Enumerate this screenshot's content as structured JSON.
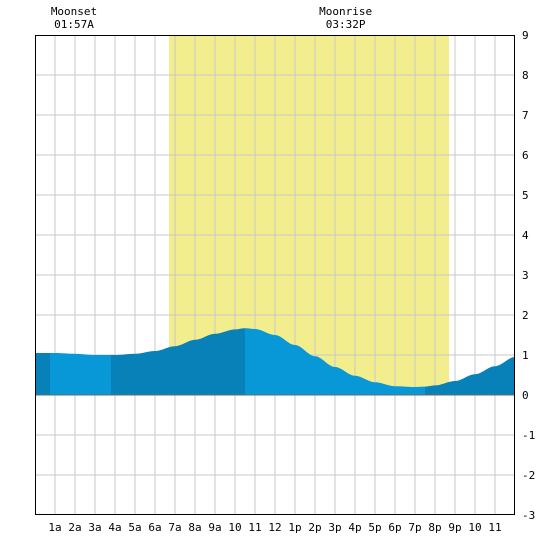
{
  "chart_data": {
    "type": "area",
    "title": "",
    "xlabel": "",
    "ylabel": "",
    "x_range_hours": [
      0,
      24
    ],
    "ylim": [
      -3,
      9
    ],
    "y_ticks": [
      "-3",
      "-2",
      "-1",
      "0",
      "1",
      "2",
      "3",
      "4",
      "5",
      "6",
      "7",
      "8",
      "9"
    ],
    "x_ticks": [
      {
        "hour": 1,
        "label": "1a"
      },
      {
        "hour": 2,
        "label": "2a"
      },
      {
        "hour": 3,
        "label": "3a"
      },
      {
        "hour": 4,
        "label": "4a"
      },
      {
        "hour": 5,
        "label": "5a"
      },
      {
        "hour": 6,
        "label": "6a"
      },
      {
        "hour": 7,
        "label": "7a"
      },
      {
        "hour": 8,
        "label": "8a"
      },
      {
        "hour": 9,
        "label": "9a"
      },
      {
        "hour": 10,
        "label": "10"
      },
      {
        "hour": 11,
        "label": "11"
      },
      {
        "hour": 12,
        "label": "12"
      },
      {
        "hour": 13,
        "label": "1p"
      },
      {
        "hour": 14,
        "label": "2p"
      },
      {
        "hour": 15,
        "label": "3p"
      },
      {
        "hour": 16,
        "label": "4p"
      },
      {
        "hour": 17,
        "label": "5p"
      },
      {
        "hour": 18,
        "label": "6p"
      },
      {
        "hour": 19,
        "label": "7p"
      },
      {
        "hour": 20,
        "label": "8p"
      },
      {
        "hour": 21,
        "label": "9p"
      },
      {
        "hour": 22,
        "label": "10"
      },
      {
        "hour": 23,
        "label": "11"
      }
    ],
    "grid": true,
    "daylight_hours": [
      6.7,
      20.7
    ],
    "tide_series": {
      "x": [
        0,
        1,
        2,
        3,
        4,
        5,
        6,
        7,
        8,
        9,
        10,
        10.5,
        11,
        12,
        13,
        14,
        15,
        16,
        17,
        18,
        19,
        19.5,
        20,
        21,
        22,
        23,
        24
      ],
      "y": [
        1.05,
        1.05,
        1.03,
        1.0,
        1.0,
        1.03,
        1.1,
        1.22,
        1.38,
        1.53,
        1.64,
        1.67,
        1.65,
        1.5,
        1.25,
        0.97,
        0.7,
        0.48,
        0.32,
        0.22,
        0.2,
        0.21,
        0.24,
        0.35,
        0.52,
        0.72,
        0.95
      ]
    },
    "band_boundaries_hours": [
      0,
      0.75,
      3.8,
      10.5,
      19.5,
      24
    ],
    "colors": {
      "daylight": "#f2ee8e",
      "tide_light": "#0898d8",
      "tide_dark": "#0880b8",
      "grid": "#c8c8c8",
      "border": "#000000"
    },
    "moon_events": [
      {
        "name": "Moonset",
        "time": "01:57A",
        "hour": 1.95
      },
      {
        "name": "Moonrise",
        "time": "03:32P",
        "hour": 15.53
      }
    ]
  }
}
